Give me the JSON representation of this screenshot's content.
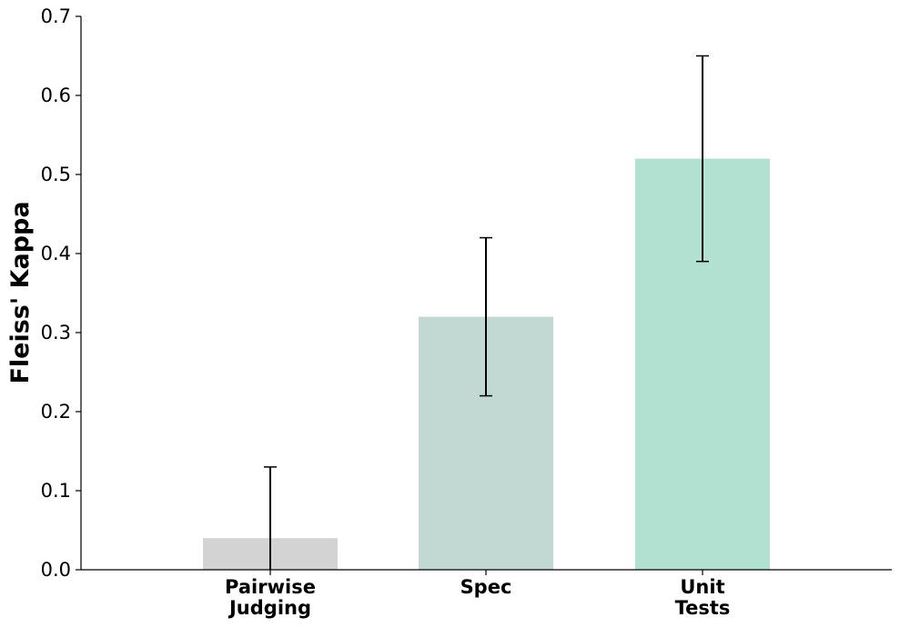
{
  "chart_data": {
    "type": "bar",
    "categories": [
      [
        "Pairwise",
        "Judging"
      ],
      [
        "Spec"
      ],
      [
        "Unit",
        "Tests"
      ]
    ],
    "values": [
      0.04,
      0.32,
      0.52
    ],
    "errors": [
      {
        "low": 0.0,
        "high": 0.13
      },
      {
        "low": 0.22,
        "high": 0.42
      },
      {
        "low": 0.39,
        "high": 0.65
      }
    ],
    "colors": [
      "#d3d3d3",
      "#c2d9d3",
      "#b3e1d1"
    ],
    "title": "",
    "xlabel": "",
    "ylabel": "Fleiss' Kappa",
    "ylim": [
      0,
      0.7
    ],
    "yticks": [
      "0.0",
      "0.1",
      "0.2",
      "0.3",
      "0.4",
      "0.5",
      "0.6",
      "0.7"
    ],
    "grid": false
  }
}
